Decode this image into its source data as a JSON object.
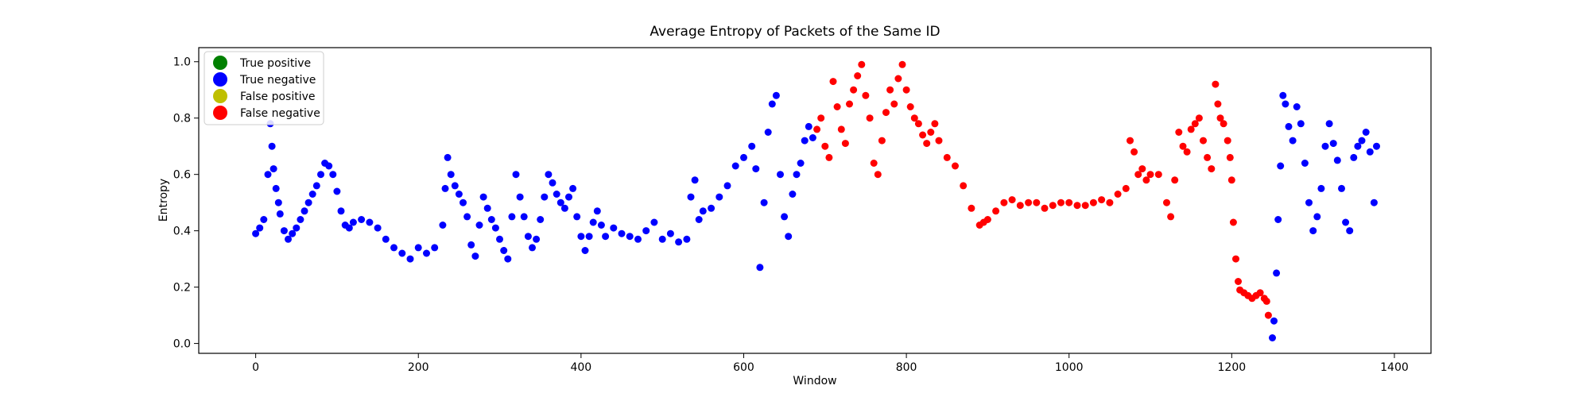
{
  "colors": {
    "true_positive": "#008000",
    "true_negative": "#0000ff",
    "false_positive": "#bfbf00",
    "false_negative": "#ff0000"
  },
  "chart_data": {
    "type": "scatter",
    "title": "Average Entropy of Packets of the Same ID",
    "xlabel": "Window",
    "ylabel": "Entropy",
    "xlim": [
      -70,
      1445
    ],
    "ylim": [
      -0.035,
      1.05
    ],
    "xticks": [
      0,
      200,
      400,
      600,
      800,
      1000,
      1200,
      1400
    ],
    "yticks": [
      0.0,
      0.2,
      0.4,
      0.6,
      0.8,
      1.0
    ],
    "xtick_labels": [
      "0",
      "200",
      "400",
      "600",
      "800",
      "1000",
      "1200",
      "1400"
    ],
    "ytick_labels": [
      "0.0",
      "0.2",
      "0.4",
      "0.6",
      "0.8",
      "1.0"
    ],
    "grid": false,
    "legend_position": "top-left",
    "legend": [
      {
        "label": "True positive",
        "color": "#008000"
      },
      {
        "label": "True negative",
        "color": "#0000ff"
      },
      {
        "label": "False positive",
        "color": "#bfbf00"
      },
      {
        "label": "False negative",
        "color": "#ff0000"
      }
    ],
    "series": [
      {
        "name": "True negative",
        "color": "#0000ff",
        "segments": [
          {
            "x": [
              0,
              5,
              10,
              15,
              18,
              20,
              22,
              25,
              28,
              30,
              35,
              40,
              45,
              50,
              55,
              60,
              65,
              70,
              75,
              80,
              85,
              90,
              95,
              100,
              105,
              110,
              115,
              120,
              130,
              140,
              150,
              160,
              170,
              180,
              190,
              200,
              210,
              220,
              230,
              233,
              236,
              240,
              245,
              250,
              255,
              260,
              265,
              270,
              275,
              280,
              285,
              290,
              295,
              300,
              305,
              310,
              315,
              320,
              325,
              330,
              335,
              340,
              345,
              350,
              355,
              360,
              365,
              370,
              375,
              380,
              385,
              390,
              395,
              400,
              405,
              410,
              415,
              420,
              425,
              430,
              440,
              450,
              460,
              470,
              480,
              490,
              500,
              510,
              520,
              530,
              535,
              540,
              545,
              550,
              560,
              570,
              580,
              590,
              600,
              610,
              615,
              620,
              625,
              630,
              635,
              640,
              645,
              650,
              655,
              660,
              665,
              670,
              675,
              680,
              685
            ],
            "y": [
              0.39,
              0.41,
              0.44,
              0.6,
              0.78,
              0.7,
              0.62,
              0.55,
              0.5,
              0.46,
              0.4,
              0.37,
              0.39,
              0.41,
              0.44,
              0.47,
              0.5,
              0.53,
              0.56,
              0.6,
              0.64,
              0.63,
              0.6,
              0.54,
              0.47,
              0.42,
              0.41,
              0.43,
              0.44,
              0.43,
              0.41,
              0.37,
              0.34,
              0.32,
              0.3,
              0.34,
              0.32,
              0.34,
              0.42,
              0.55,
              0.66,
              0.6,
              0.56,
              0.53,
              0.5,
              0.45,
              0.35,
              0.31,
              0.42,
              0.52,
              0.48,
              0.44,
              0.41,
              0.37,
              0.33,
              0.3,
              0.45,
              0.6,
              0.52,
              0.45,
              0.38,
              0.34,
              0.37,
              0.44,
              0.52,
              0.6,
              0.57,
              0.53,
              0.5,
              0.48,
              0.52,
              0.55,
              0.45,
              0.38,
              0.33,
              0.38,
              0.43,
              0.47,
              0.42,
              0.38,
              0.41,
              0.39,
              0.38,
              0.37,
              0.4,
              0.43,
              0.37,
              0.39,
              0.36,
              0.37,
              0.52,
              0.58,
              0.44,
              0.47,
              0.48,
              0.52,
              0.56,
              0.63,
              0.66,
              0.7,
              0.62,
              0.27,
              0.5,
              0.75,
              0.85,
              0.88,
              0.6,
              0.45,
              0.38,
              0.53,
              0.6,
              0.64,
              0.72,
              0.77,
              0.73
            ]
          },
          {
            "x": [
              1250,
              1252,
              1255,
              1257,
              1260,
              1263,
              1266,
              1270,
              1275,
              1280,
              1285,
              1290,
              1295,
              1300,
              1305,
              1310,
              1315,
              1320,
              1325,
              1330,
              1335,
              1340,
              1345,
              1350,
              1355,
              1360,
              1365,
              1370,
              1375,
              1378
            ],
            "y": [
              0.02,
              0.08,
              0.25,
              0.44,
              0.63,
              0.88,
              0.85,
              0.77,
              0.72,
              0.84,
              0.78,
              0.64,
              0.5,
              0.4,
              0.45,
              0.55,
              0.7,
              0.78,
              0.71,
              0.65,
              0.55,
              0.43,
              0.4,
              0.66,
              0.7,
              0.72,
              0.75,
              0.68,
              0.5,
              0.7
            ]
          }
        ]
      },
      {
        "name": "False negative",
        "color": "#ff0000",
        "segments": [
          {
            "x": [
              690,
              695,
              700,
              705,
              710,
              715,
              720,
              725,
              730,
              735,
              740,
              745,
              750,
              755,
              760,
              765,
              770,
              775,
              780,
              785,
              790,
              795,
              800,
              805,
              810,
              815,
              820,
              825,
              830,
              835,
              840,
              850,
              860,
              870,
              880,
              890,
              895,
              900,
              910,
              920,
              930,
              940,
              950,
              960,
              970,
              980,
              990,
              1000,
              1010,
              1020,
              1030,
              1040,
              1050,
              1060,
              1070,
              1075,
              1080,
              1085,
              1090,
              1095,
              1100,
              1110,
              1120,
              1125,
              1130,
              1135,
              1140,
              1145,
              1150,
              1155,
              1160,
              1165,
              1170,
              1175,
              1180,
              1183,
              1186,
              1190,
              1195,
              1198,
              1200,
              1202,
              1205,
              1208,
              1210,
              1215,
              1220,
              1225,
              1230,
              1235,
              1240,
              1243,
              1245
            ],
            "y": [
              0.76,
              0.8,
              0.7,
              0.66,
              0.93,
              0.84,
              0.76,
              0.71,
              0.85,
              0.9,
              0.95,
              0.99,
              0.88,
              0.8,
              0.64,
              0.6,
              0.72,
              0.82,
              0.9,
              0.85,
              0.94,
              0.99,
              0.9,
              0.84,
              0.8,
              0.78,
              0.74,
              0.71,
              0.75,
              0.78,
              0.72,
              0.66,
              0.63,
              0.56,
              0.48,
              0.42,
              0.43,
              0.44,
              0.47,
              0.5,
              0.51,
              0.49,
              0.5,
              0.5,
              0.48,
              0.49,
              0.5,
              0.5,
              0.49,
              0.49,
              0.5,
              0.51,
              0.5,
              0.53,
              0.55,
              0.72,
              0.68,
              0.6,
              0.62,
              0.58,
              0.6,
              0.6,
              0.5,
              0.45,
              0.58,
              0.75,
              0.7,
              0.68,
              0.76,
              0.78,
              0.8,
              0.72,
              0.66,
              0.62,
              0.92,
              0.85,
              0.8,
              0.78,
              0.72,
              0.66,
              0.58,
              0.43,
              0.3,
              0.22,
              0.19,
              0.18,
              0.17,
              0.16,
              0.17,
              0.18,
              0.16,
              0.15,
              0.1
            ]
          }
        ]
      }
    ]
  }
}
